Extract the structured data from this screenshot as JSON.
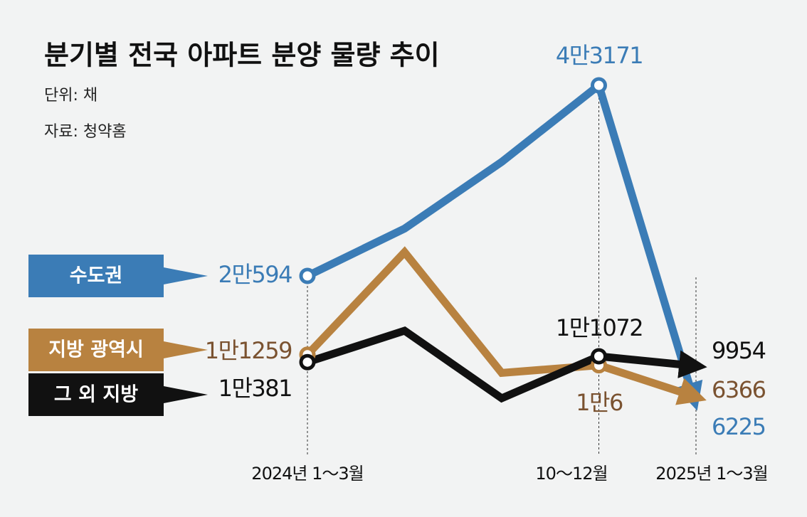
{
  "chart_data": {
    "type": "line",
    "title": "분기별 전국 아파트 분양 물량 추이",
    "subtitle": [
      "단위: 채",
      "자료: 청약홈"
    ],
    "categories": [
      "2024년 1～3월",
      null,
      null,
      "10～12월",
      "2025년 1～3월"
    ],
    "series": [
      {
        "name": "수도권",
        "color": "#3b7cb6",
        "label_color": "#3b7cb6",
        "values": [
          20594,
          26200,
          34100,
          43171,
          6225
        ],
        "value_labels": [
          "2만594",
          null,
          null,
          "4만3171",
          "6225"
        ]
      },
      {
        "name": "지방 광역시",
        "color": "#b88240",
        "label_color": "#7a5230",
        "values": [
          11259,
          23400,
          9100,
          10006,
          6366
        ],
        "value_labels": [
          "1만1259",
          null,
          null,
          "1만6",
          "6366"
        ]
      },
      {
        "name": "그 외 지방",
        "color": "#111111",
        "label_color": "#111111",
        "values": [
          10381,
          14100,
          6100,
          11072,
          9954
        ],
        "value_labels": [
          "1만381",
          null,
          null,
          "1만1072",
          "9954"
        ]
      }
    ]
  }
}
